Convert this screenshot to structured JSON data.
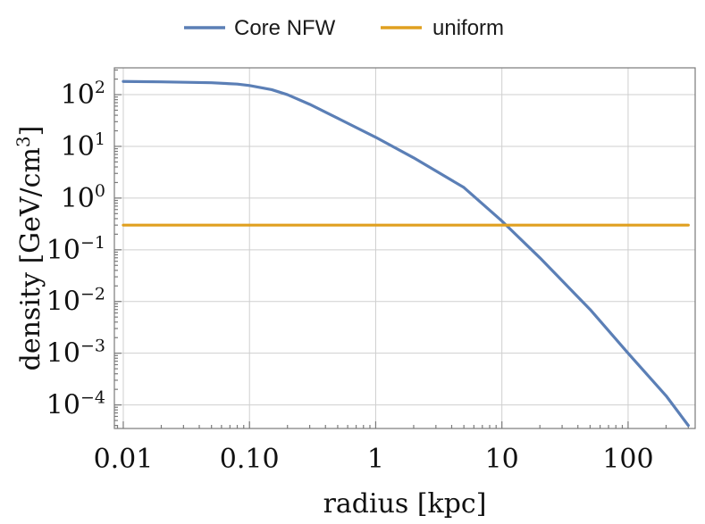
{
  "chart_data": {
    "type": "line",
    "xlabel": "radius [kpc]",
    "ylabel_text": "density [GeV/cm",
    "ylabel_sup": "3",
    "ylabel_close": "]",
    "xscale": "log",
    "yscale": "log",
    "xlim": [
      0.0085,
      340
    ],
    "ylim": [
      3.5e-05,
      330
    ],
    "grid": true,
    "legend_position": "top-center",
    "x_ticks": [
      {
        "value": 0.01,
        "label": "0.01"
      },
      {
        "value": 0.1,
        "label": "0.10"
      },
      {
        "value": 1,
        "label": "1"
      },
      {
        "value": 10,
        "label": "10"
      },
      {
        "value": 100,
        "label": "100"
      }
    ],
    "y_ticks": [
      {
        "value": 100,
        "base": "10",
        "exp": "2"
      },
      {
        "value": 10,
        "base": "10",
        "exp": "1"
      },
      {
        "value": 1,
        "base": "10",
        "exp": "0"
      },
      {
        "value": 0.1,
        "base": "10",
        "exp": "−1"
      },
      {
        "value": 0.01,
        "base": "10",
        "exp": "−2"
      },
      {
        "value": 0.001,
        "base": "10",
        "exp": "−3"
      },
      {
        "value": 0.0001,
        "base": "10",
        "exp": "−4"
      }
    ],
    "series": [
      {
        "name": "Core NFW",
        "color": "#5b7fb6",
        "x": [
          0.01,
          0.02,
          0.05,
          0.08,
          0.1,
          0.15,
          0.2,
          0.3,
          0.5,
          1,
          2,
          5,
          10,
          20,
          50,
          100,
          200,
          300
        ],
        "y": [
          180,
          177,
          170,
          160,
          150,
          125,
          100,
          65,
          35,
          15,
          6,
          1.6,
          0.36,
          0.07,
          0.007,
          0.001,
          0.00015,
          4e-05
        ]
      },
      {
        "name": "uniform",
        "color": "#e0a020",
        "x": [
          0.01,
          300
        ],
        "y": [
          0.3,
          0.3
        ]
      }
    ]
  }
}
